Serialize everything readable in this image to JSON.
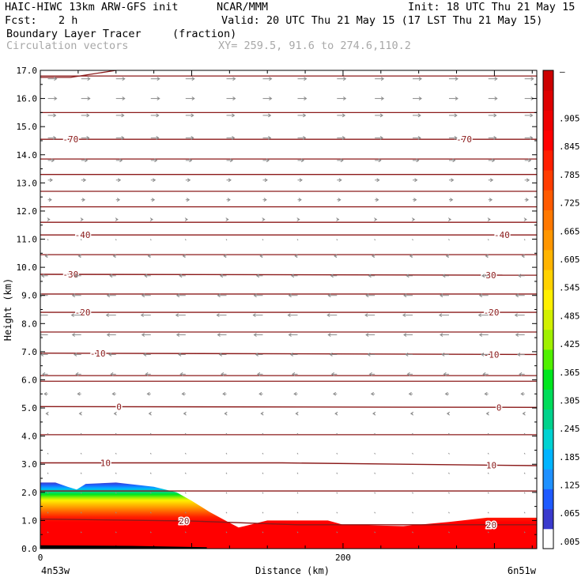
{
  "header": {
    "model": "HAIC-HIWC 13km ARW-GFS init",
    "org": "NCAR/MMM",
    "init": "Init: 18 UTC Thu 21 May 15",
    "fcst_label": "Fcst:",
    "fcst_value": "2 h",
    "valid": "Valid: 20 UTC Thu 21 May 15 (17 LST Thu 21 May 15)",
    "field": "Boundary Layer Tracer",
    "field_units": "(fraction)",
    "vectors": "Circulation vectors",
    "xy": "XY= 259.5, 91.6 to 274.6,110.2"
  },
  "colors": {
    "contour": "#8b1a1a",
    "vector": "#8c8c8c",
    "scale": [
      "#ffffff",
      "#3a3acd",
      "#1e5aff",
      "#1e90ff",
      "#00b4ff",
      "#00d2d2",
      "#00d28c",
      "#00dc5a",
      "#00e61e",
      "#50f000",
      "#a0f000",
      "#d2f000",
      "#fff000",
      "#ffd200",
      "#ffb400",
      "#ff9600",
      "#ff7800",
      "#ff5a00",
      "#ff3c00",
      "#ff1e00",
      "#ff0000",
      "#ee0000",
      "#de0000",
      "#cc0000"
    ]
  },
  "chart_data": {
    "type": "heatmap",
    "title": "Boundary Layer Tracer",
    "units": "(fraction)",
    "overlay": "Circulation vectors",
    "xlabel": "Distance (km)",
    "ylabel": "Height (km)",
    "xlim": [
      0,
      328
    ],
    "ylim": [
      0,
      17
    ],
    "x_ticks": [
      {
        "value": 0,
        "label": "0"
      },
      {
        "value": 200,
        "label": "200"
      }
    ],
    "y_ticks": [
      "0.0",
      "1.0",
      "2.0",
      "3.0",
      "4.0",
      "5.0",
      "6.0",
      "7.0",
      "8.0",
      "9.0",
      "10.0",
      "11.0",
      "12.0",
      "13.0",
      "14.0",
      "15.0",
      "16.0",
      "17.0"
    ],
    "x_endpoints": {
      "left": "4n53w",
      "right": "6n51w"
    },
    "colorbar_labels": [
      ".905",
      ".845",
      ".785",
      ".725",
      ".665",
      ".605",
      ".545",
      ".485",
      ".425",
      ".365",
      ".305",
      ".245",
      ".185",
      ".125",
      ".065",
      ".005"
    ],
    "colorbar_top_label": "–",
    "tracer_top": [
      [
        0,
        2.35
      ],
      [
        10,
        2.35
      ],
      [
        18,
        2.2
      ],
      [
        24,
        2.1
      ],
      [
        30,
        2.3
      ],
      [
        50,
        2.35
      ],
      [
        75,
        2.2
      ],
      [
        90,
        2.0
      ],
      [
        100,
        1.7
      ],
      [
        112,
        1.3
      ],
      [
        124,
        0.95
      ],
      [
        131,
        0.75
      ],
      [
        135,
        0.8
      ],
      [
        150,
        1.0
      ],
      [
        190,
        1.0
      ],
      [
        200,
        0.85
      ],
      [
        240,
        0.8
      ],
      [
        270,
        0.95
      ],
      [
        295,
        1.1
      ],
      [
        328,
        1.1
      ]
    ],
    "temperature_contours": [
      {
        "label": "-70",
        "points": [
          [
            0,
            14.55
          ],
          [
            328,
            14.55
          ]
        ],
        "label_x": [
          20,
          280
        ]
      },
      {
        "label": "-40",
        "points": [
          [
            0,
            11.15
          ],
          [
            328,
            11.15
          ]
        ],
        "label_x": [
          28,
          305
        ]
      },
      {
        "label": "-30",
        "points": [
          [
            0,
            9.75
          ],
          [
            328,
            9.72
          ]
        ],
        "label_x": [
          20,
          296
        ]
      },
      {
        "label": "-20",
        "points": [
          [
            0,
            8.4
          ],
          [
            328,
            8.4
          ]
        ],
        "label_x": [
          28,
          298
        ]
      },
      {
        "label": "-10",
        "points": [
          [
            0,
            6.95
          ],
          [
            328,
            6.9
          ]
        ],
        "label_x": [
          38,
          298
        ]
      },
      {
        "label": "0",
        "points": [
          [
            0,
            5.05
          ],
          [
            328,
            5.02
          ]
        ],
        "label_x": [
          52,
          303
        ]
      },
      {
        "label": "10",
        "points": [
          [
            0,
            3.05
          ],
          [
            160,
            3.05
          ],
          [
            328,
            2.95
          ]
        ],
        "label_x": [
          43,
          298
        ]
      },
      {
        "label": "20",
        "points": [
          [
            0,
            1.05
          ],
          [
            100,
            0.98
          ],
          [
            170,
            0.85
          ],
          [
            328,
            0.85
          ]
        ],
        "label_x": [
          95,
          298
        ]
      }
    ],
    "other_isotherms_km": [
      16.8,
      15.5,
      13.85,
      13.3,
      12.7,
      12.15,
      11.6,
      10.45,
      9.05,
      7.7,
      6.15,
      5.95,
      4.05,
      2.05
    ],
    "tropopause_curve": [
      [
        0,
        16.75
      ],
      [
        20,
        16.75
      ],
      [
        50,
        17.0
      ]
    ],
    "wind_rows": [
      {
        "z": 16.7,
        "u": 1.0
      },
      {
        "z": 16.0,
        "u": 1.0
      },
      {
        "z": 15.4,
        "u": 0.9
      },
      {
        "z": 14.6,
        "u": 0.9
      },
      {
        "z": 13.8,
        "u": 0.7
      },
      {
        "z": 13.1,
        "u": 0.5
      },
      {
        "z": 12.4,
        "u": 0.4
      },
      {
        "z": 11.7,
        "u": 0.2
      },
      {
        "z": 11.0,
        "u": 0.0
      },
      {
        "z": 10.4,
        "u": -0.3
      },
      {
        "z": 9.7,
        "u": -0.7
      },
      {
        "z": 9.0,
        "u": -1.0
      },
      {
        "z": 8.3,
        "u": -1.1
      },
      {
        "z": 7.6,
        "u": -1.0
      },
      {
        "z": 6.9,
        "u": -0.8
      },
      {
        "z": 6.2,
        "u": -0.6
      },
      {
        "z": 5.5,
        "u": -0.4
      },
      {
        "z": 4.8,
        "u": -0.2
      },
      {
        "z": 4.1,
        "u": 0.0
      },
      {
        "z": 3.4,
        "u": 0.0
      },
      {
        "z": 2.7,
        "u": 0.0
      },
      {
        "z": 2.0,
        "u": 0.0
      },
      {
        "z": 1.3,
        "u": 0.1
      },
      {
        "z": 0.6,
        "u": 0.1
      }
    ],
    "wind_columns_km": [
      5,
      27,
      50,
      73,
      96,
      123,
      147,
      170,
      196,
      221,
      246,
      270,
      296,
      320
    ]
  }
}
